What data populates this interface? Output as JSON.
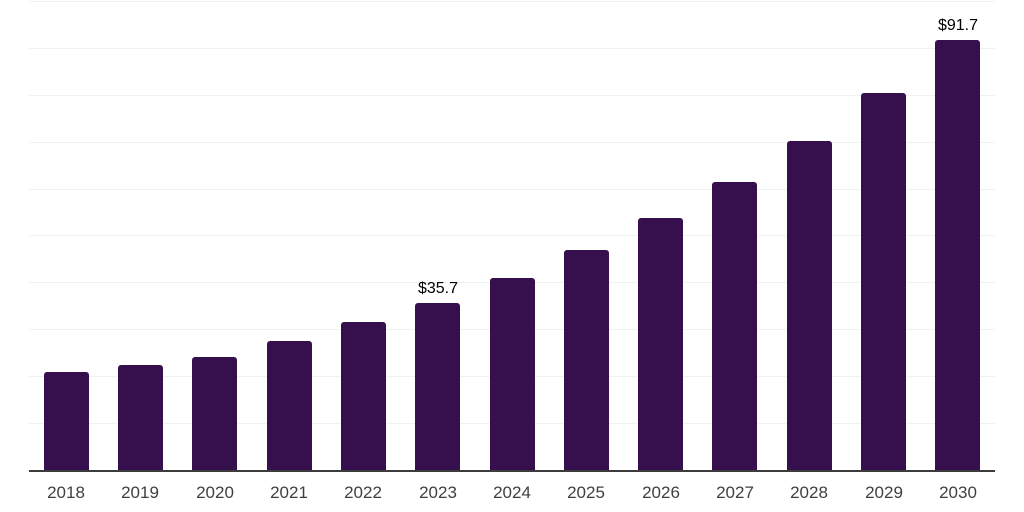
{
  "chart_data": {
    "type": "bar",
    "title": "",
    "xlabel": "",
    "ylabel": "",
    "categories": [
      "2018",
      "2019",
      "2020",
      "2021",
      "2022",
      "2023",
      "2024",
      "2025",
      "2026",
      "2027",
      "2028",
      "2029",
      "2030"
    ],
    "values": [
      21.0,
      22.3,
      24.2,
      27.5,
      31.6,
      35.7,
      40.9,
      46.9,
      53.8,
      61.5,
      70.2,
      80.3,
      91.7
    ],
    "point_labels": [
      "",
      "",
      "",
      "",
      "",
      "$35.7",
      "",
      "",
      "",
      "",
      "",
      "",
      "$91.7"
    ],
    "ylim": [
      0,
      100
    ],
    "gridline_step": 10,
    "grid": true,
    "legend_position": "none",
    "colors": {
      "bar": "#36104D",
      "gridline": "#f1f1f1",
      "axis_line": "#3c3c3c",
      "tick_label": "#3f3f3f",
      "data_label": "#000000",
      "background": "#ffffff"
    }
  }
}
